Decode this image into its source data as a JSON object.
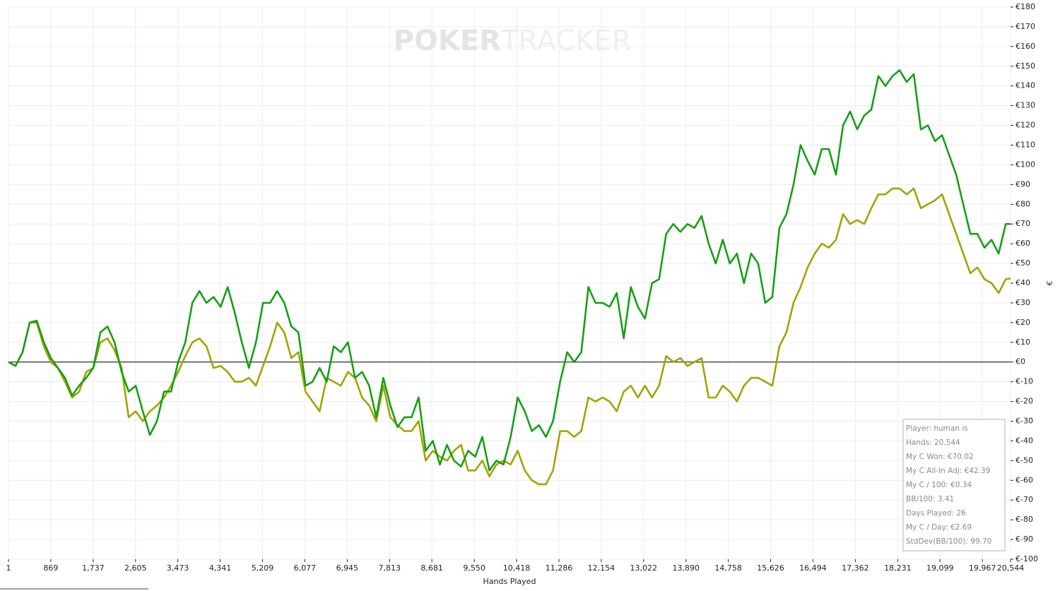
{
  "chart_data": {
    "type": "line",
    "watermark": [
      "POKER",
      "TRACKER"
    ],
    "xlabel": "Hands Played",
    "ylabel": "€",
    "info_box": [
      "Player: human is",
      "Hands: 20,544",
      "My C Won: €70.02",
      "My C All-In Adj: €42.39",
      "My C / 100: €0.34",
      "BB/100: 3.41",
      "Days Played: 26",
      "My C / Day: €2.69",
      "StdDev(BB/100): 99.70"
    ],
    "xlim": [
      1,
      20544
    ],
    "ylim": [
      -100,
      180
    ],
    "xticks": [
      1,
      869,
      {
        "value": 1737,
        "label": "1,737"
      },
      {
        "value": 2605,
        "label": "2,605"
      },
      {
        "value": 3473,
        "label": "3,473"
      },
      {
        "value": 4341,
        "label": "4,341"
      },
      {
        "value": 5209,
        "label": "5,209"
      },
      {
        "value": 6077,
        "label": "6,077"
      },
      {
        "value": 6945,
        "label": "6,945"
      },
      {
        "value": 7813,
        "label": "7,813"
      },
      {
        "value": 8681,
        "label": "8,681"
      },
      {
        "value": 9550,
        "label": "9,550"
      },
      {
        "value": 10418,
        "label": "10,418"
      },
      {
        "value": 11286,
        "label": "11,286"
      },
      {
        "value": 12154,
        "label": "12,154"
      },
      {
        "value": 13022,
        "label": "13,022"
      },
      {
        "value": 13890,
        "label": "13,890"
      },
      {
        "value": 14758,
        "label": "14,758"
      },
      {
        "value": 15626,
        "label": "15,626"
      },
      {
        "value": 16494,
        "label": "16,494"
      },
      {
        "value": 17362,
        "label": "17,362"
      },
      {
        "value": 18231,
        "label": "18,231"
      },
      {
        "value": 19099,
        "label": "19,099"
      },
      {
        "value": 19967,
        "label": "19,967"
      },
      {
        "value": 20544,
        "label": "20,544"
      }
    ],
    "yticks": [
      {
        "value": -100,
        "label": "€-100"
      },
      {
        "value": -90,
        "label": "€-90"
      },
      {
        "value": -80,
        "label": "€-80"
      },
      {
        "value": -70,
        "label": "€-70"
      },
      {
        "value": -60,
        "label": "€-60"
      },
      {
        "value": -50,
        "label": "€-50"
      },
      {
        "value": -40,
        "label": "€-40"
      },
      {
        "value": -30,
        "label": "€-30"
      },
      {
        "value": -20,
        "label": "€-20"
      },
      {
        "value": -10,
        "label": "€-10"
      },
      {
        "value": 0,
        "label": "€0"
      },
      {
        "value": 10,
        "label": "€10"
      },
      {
        "value": 20,
        "label": "€20"
      },
      {
        "value": 30,
        "label": "€30"
      },
      {
        "value": 40,
        "label": "€40"
      },
      {
        "value": 50,
        "label": "€50"
      },
      {
        "value": 60,
        "label": "€60"
      },
      {
        "value": 70,
        "label": "€70"
      },
      {
        "value": 80,
        "label": "€80"
      },
      {
        "value": 90,
        "label": "€90"
      },
      {
        "value": 100,
        "label": "€100"
      },
      {
        "value": 110,
        "label": "€110"
      },
      {
        "value": 120,
        "label": "€120"
      },
      {
        "value": 130,
        "label": "€130"
      },
      {
        "value": 140,
        "label": "€140"
      },
      {
        "value": 150,
        "label": "€150"
      },
      {
        "value": 160,
        "label": "€160"
      },
      {
        "value": 170,
        "label": "€170"
      },
      {
        "value": 180,
        "label": "€180"
      }
    ],
    "grid": true,
    "x": [
      1,
      145,
      290,
      435,
      580,
      725,
      870,
      1015,
      1160,
      1305,
      1450,
      1595,
      1740,
      1885,
      2030,
      2175,
      2320,
      2465,
      2610,
      2755,
      2900,
      3045,
      3190,
      3335,
      3480,
      3625,
      3770,
      3915,
      4060,
      4205,
      4350,
      4495,
      4640,
      4785,
      4930,
      5075,
      5220,
      5365,
      5510,
      5655,
      5800,
      5945,
      6090,
      6235,
      6380,
      6525,
      6670,
      6815,
      6960,
      7105,
      7250,
      7395,
      7540,
      7685,
      7830,
      7975,
      8120,
      8265,
      8410,
      8555,
      8700,
      8845,
      8990,
      9135,
      9280,
      9425,
      9570,
      9715,
      9860,
      10005,
      10150,
      10295,
      10440,
      10585,
      10730,
      10875,
      11020,
      11165,
      11310,
      11455,
      11600,
      11745,
      11890,
      12035,
      12180,
      12325,
      12470,
      12615,
      12760,
      12905,
      13050,
      13195,
      13340,
      13485,
      13630,
      13775,
      13920,
      14065,
      14210,
      14355,
      14500,
      14645,
      14790,
      14935,
      15080,
      15225,
      15370,
      15515,
      15660,
      15805,
      15950,
      16095,
      16240,
      16385,
      16530,
      16675,
      16820,
      16965,
      17110,
      17255,
      17400,
      17545,
      17690,
      17835,
      17980,
      18125,
      18270,
      18415,
      18560,
      18705,
      18850,
      18995,
      19140,
      19285,
      19430,
      19575,
      19720,
      19865,
      20010,
      20155,
      20300,
      20445,
      20544
    ],
    "series": [
      {
        "color": "#a3a300",
        "values": [
          0,
          -2,
          5,
          20,
          20,
          8,
          0,
          -3,
          -10,
          -18,
          -15,
          -5,
          -3,
          10,
          12,
          6,
          -3,
          -28,
          -25,
          -30,
          -25,
          -22,
          -18,
          -12,
          -5,
          3,
          10,
          12,
          8,
          -3,
          -2,
          -5,
          -10,
          -10,
          -8,
          -12,
          -2,
          8,
          20,
          15,
          2,
          5,
          -15,
          -20,
          -25,
          -8,
          -10,
          -12,
          -5,
          -8,
          -18,
          -22,
          -30,
          -12,
          -28,
          -32,
          -35,
          -35,
          -30,
          -50,
          -45,
          -48,
          -50,
          -45,
          -42,
          -55,
          -55,
          -50,
          -58,
          -52,
          -50,
          -52,
          -45,
          -55,
          -60,
          -62,
          -62,
          -55,
          -35,
          -35,
          -38,
          -35,
          -18,
          -20,
          -18,
          -20,
          -25,
          -15,
          -12,
          -18,
          -12,
          -18,
          -12,
          3,
          0,
          2,
          -2,
          0,
          2,
          -18,
          -18,
          -12,
          -15,
          -20,
          -12,
          -8,
          -8,
          -10,
          -12,
          8,
          15,
          30,
          38,
          48,
          55,
          60,
          58,
          62,
          75,
          70,
          72,
          70,
          78,
          85,
          85,
          88,
          88,
          85,
          88,
          78,
          80,
          82,
          85,
          75,
          65,
          55,
          45,
          48,
          42,
          40,
          35,
          42,
          42.39
        ]
      },
      {
        "color": "#15a015",
        "values": [
          0,
          -2,
          5,
          20,
          21,
          10,
          2,
          -3,
          -8,
          -17,
          -12,
          -8,
          -3,
          15,
          18,
          10,
          -5,
          -15,
          -12,
          -25,
          -37,
          -30,
          -15,
          -15,
          0,
          10,
          30,
          36,
          30,
          33,
          28,
          38,
          25,
          10,
          -3,
          10,
          30,
          30,
          36,
          30,
          18,
          15,
          -12,
          -10,
          -3,
          -10,
          8,
          5,
          10,
          -8,
          -5,
          -12,
          -28,
          -8,
          -22,
          -33,
          -28,
          -28,
          -18,
          -45,
          -40,
          -52,
          -42,
          -50,
          -53,
          -45,
          -48,
          -38,
          -55,
          -50,
          -52,
          -38,
          -18,
          -25,
          -35,
          -32,
          -38,
          -30,
          -10,
          5,
          0,
          5,
          38,
          30,
          30,
          28,
          35,
          12,
          38,
          28,
          22,
          40,
          42,
          65,
          70,
          66,
          70,
          68,
          74,
          60,
          50,
          62,
          50,
          55,
          40,
          55,
          50,
          30,
          33,
          68,
          75,
          90,
          110,
          102,
          95,
          108,
          108,
          95,
          120,
          127,
          118,
          125,
          128,
          145,
          140,
          145,
          148,
          142,
          146,
          118,
          120,
          112,
          115,
          105,
          95,
          80,
          65,
          65,
          58,
          62,
          55,
          70,
          70.02
        ]
      }
    ]
  }
}
